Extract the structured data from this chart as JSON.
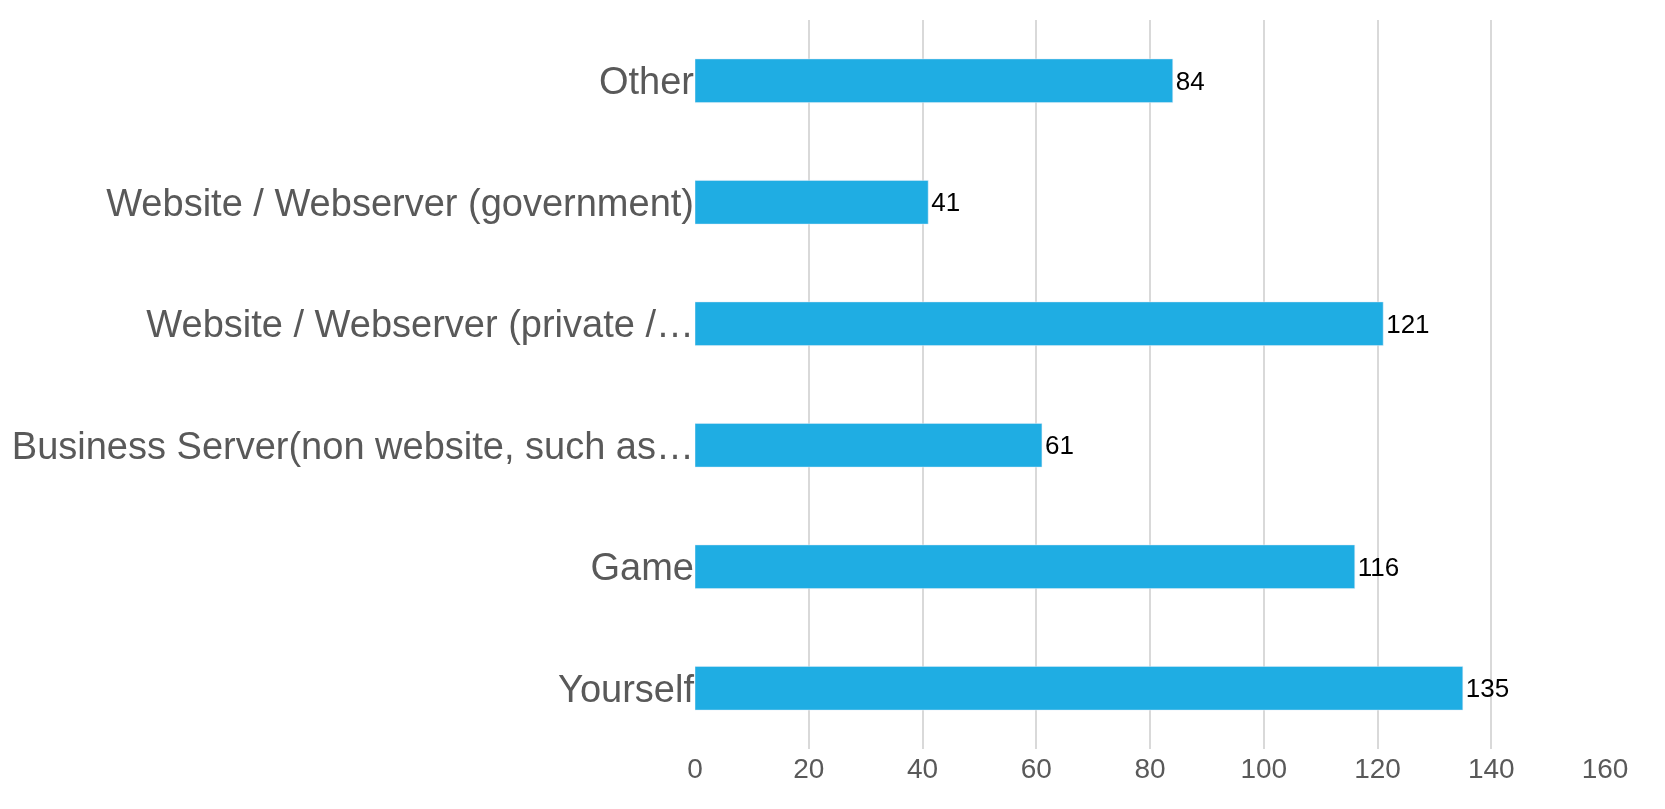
{
  "chart_data": {
    "type": "bar",
    "orientation": "horizontal",
    "categories": [
      "Other",
      "Website / Webserver (government)",
      "Website / Webserver (private /…",
      "Business Server(non website, such as…",
      "Game",
      "Yourself"
    ],
    "values": [
      84,
      41,
      121,
      61,
      116,
      135
    ],
    "color": "#1fade3",
    "xlim": [
      0,
      160
    ],
    "xticks": [
      0,
      20,
      40,
      60,
      80,
      100,
      120,
      140,
      160
    ],
    "grid": "x",
    "data_labels": true
  }
}
